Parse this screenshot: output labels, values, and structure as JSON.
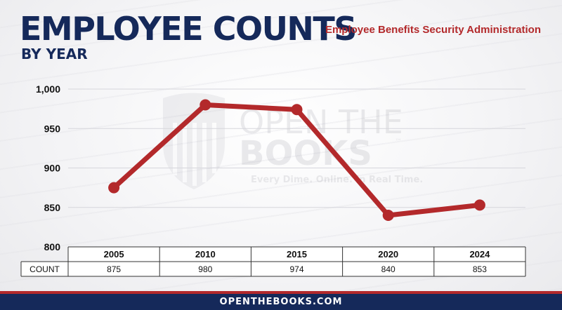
{
  "header": {
    "title": "EMPLOYEE COUNTS",
    "subtitle": "BY YEAR",
    "agency": "Employee Benefits Security Administration"
  },
  "watermark": {
    "line1": "OPEN THE",
    "line2": "BOOKS",
    "trademark": "™",
    "tagline": "Every Dime. Online. In Real Time."
  },
  "footer": {
    "text": "OPENTHEBOOKS.COM"
  },
  "colors": {
    "navy": "#15295a",
    "red": "#b3292b",
    "line": "#b3292b"
  },
  "chart_data": {
    "type": "line",
    "categories": [
      "2005",
      "2010",
      "2015",
      "2020",
      "2024"
    ],
    "values": [
      875,
      980,
      974,
      840,
      853
    ],
    "ylim": [
      800,
      1000
    ],
    "yticks": [
      "1,000",
      "950",
      "900",
      "850",
      "800"
    ],
    "ytick_values": [
      1000,
      950,
      900,
      850,
      800
    ],
    "table_row_label": "COUNT",
    "table_values": [
      "875",
      "980",
      "974",
      "840",
      "853"
    ],
    "grid": true
  }
}
